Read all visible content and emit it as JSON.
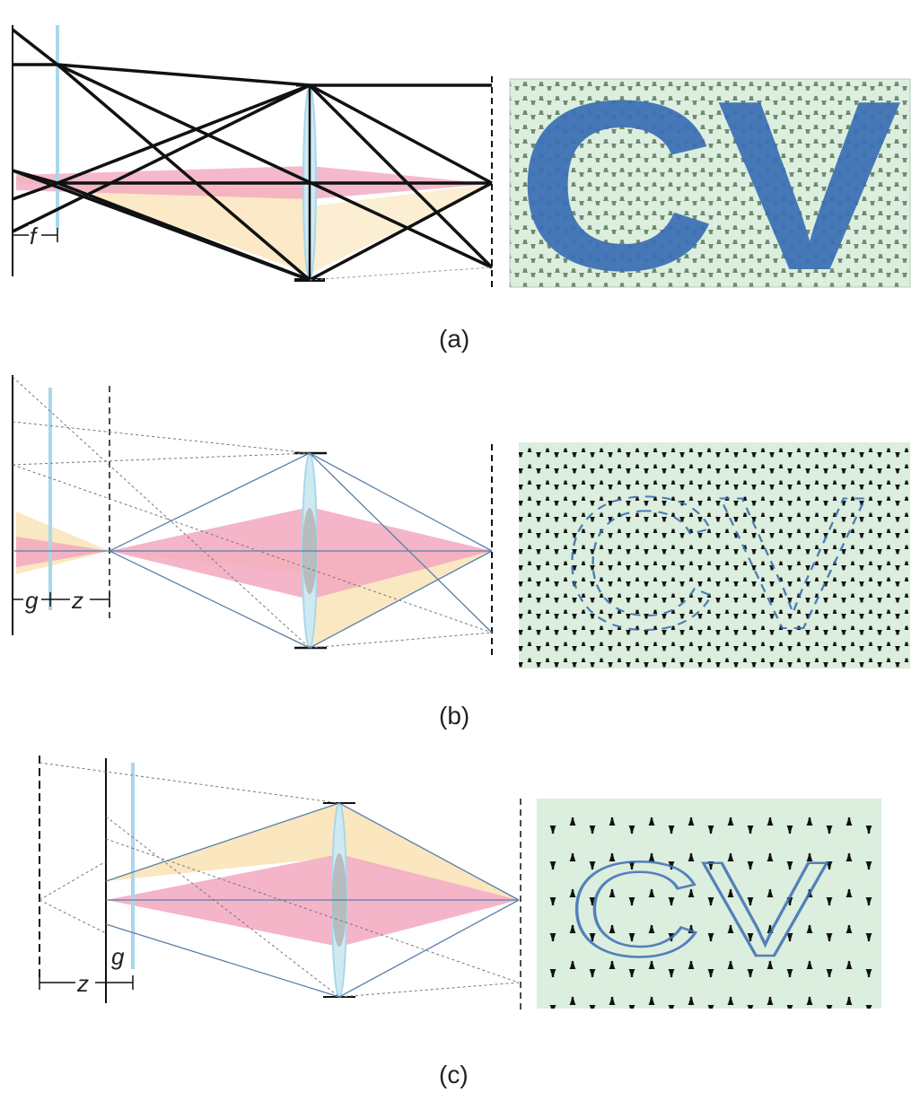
{
  "panels": [
    {
      "id": "a",
      "caption": "(a)",
      "symbols": [
        "f"
      ],
      "image_text": "CV"
    },
    {
      "id": "b",
      "caption": "(b)",
      "symbols": [
        "g",
        "z"
      ],
      "image_text": "CV"
    },
    {
      "id": "c",
      "caption": "(c)",
      "symbols": [
        "z",
        "g"
      ],
      "image_text": "CV"
    }
  ],
  "colors": {
    "ray": "#111111",
    "ray_thin": "#5a7fa8",
    "cone_pink": "#f2a8bf",
    "cone_yellow": "#f9e2b4",
    "lens": "#a8d8ea",
    "lenslet_fill": "#dceedd",
    "letter_blue": "#3a6fb5"
  }
}
